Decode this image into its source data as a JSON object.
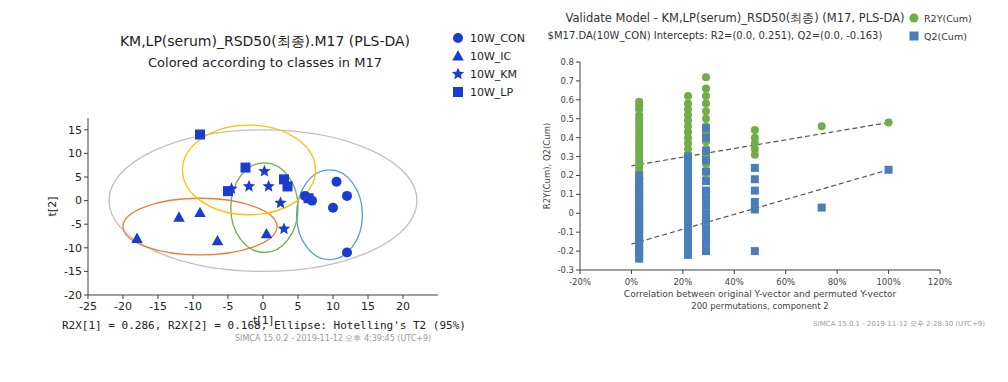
{
  "chart_data": [
    {
      "type": "scatter",
      "title": "KM,LP(serum)_RSD50(최종).M17 (PLS-DA)",
      "subtitle": "Colored according to classes in M17",
      "x_label": "t[1]",
      "y_label": "t[2]",
      "xlim": [
        -25,
        25
      ],
      "ylim": [
        -20,
        17.5
      ],
      "xticks": [
        -25,
        -20,
        -15,
        -10,
        -5,
        0,
        5,
        10,
        15,
        20
      ],
      "yticks": [
        -20,
        -15,
        -10,
        -5,
        0,
        5,
        10,
        15
      ],
      "grid": false,
      "legend": "top-right",
      "series": [
        {
          "name": "10W_CON",
          "color": "#1a3ccf",
          "marker": "circle",
          "x": [
            10.5,
            12,
            10,
            6,
            7,
            12
          ],
          "values": [
            4,
            1,
            -1.5,
            1,
            0,
            -11
          ]
        },
        {
          "name": "10W_IC",
          "color": "#1a3ccf",
          "marker": "triangle",
          "x": [
            -18,
            -12,
            -9,
            -6.5,
            0.5
          ],
          "values": [
            -8,
            -3.5,
            -2.5,
            -8.5,
            -7
          ]
        },
        {
          "name": "10W_KM",
          "color": "#1a3ccf",
          "marker": "star",
          "x": [
            0.2,
            -2,
            0.8,
            2.5,
            3,
            -4.5
          ],
          "values": [
            6.2,
            3,
            3,
            -0.5,
            -6,
            2.5
          ]
        },
        {
          "name": "10W_LP",
          "color": "#1a3ccf",
          "marker": "square",
          "x": [
            -9,
            -2.5,
            -5,
            3,
            3.5,
            6.5
          ],
          "values": [
            14,
            7,
            2,
            4.5,
            3,
            0.5
          ]
        }
      ],
      "ellipses": [
        {
          "color": "#bfbfbf",
          "cx": 0,
          "cy": 0,
          "rx": 22,
          "ry": 15
        },
        {
          "color": "#5b9bd5",
          "cx": 9.5,
          "cy": -3,
          "rx": 4.7,
          "ry": 9.5
        },
        {
          "color": "#ed7d31",
          "cx": -9,
          "cy": -5.5,
          "rx": 11,
          "ry": 6
        },
        {
          "color": "#70ad47",
          "cx": 0.2,
          "cy": -1.5,
          "rx": 4.8,
          "ry": 9.5
        },
        {
          "color": "#ffc000",
          "cx": -2,
          "cy": 6.5,
          "rx": 9.5,
          "ry": 9.5
        }
      ],
      "annotations": [
        "R2X[1] = 0.286, R2X[2] = 0.168, Ellipse: Hotelling's T2 (95%)",
        "SIMCA 15.0.2 - 2019-11-12 오후 4:39:45 (UTC+9)"
      ]
    },
    {
      "type": "scatter",
      "title": "Validate Model - KM,LP(serum)_RSD50(최종) (M17, PLS-DA)",
      "subtitle": "$M17.DA(10W_CON) Intercepts: R2=(0.0, 0.251), Q2=(0.0, -0.163)",
      "x_label": "Correlation between original Y-vector and permuted Y-vector",
      "y_label": "R2Y(Cum), Q2(Cum)",
      "xlim": [
        -20,
        120
      ],
      "ylim": [
        -0.3,
        0.8
      ],
      "xticks": [
        {
          "value": -20,
          "label": "-20%"
        },
        {
          "value": 0,
          "label": "0%"
        },
        {
          "value": 20,
          "label": "20%"
        },
        {
          "value": 40,
          "label": "40%"
        },
        {
          "value": 60,
          "label": "60%"
        },
        {
          "value": 80,
          "label": "80%"
        },
        {
          "value": 100,
          "label": "100%"
        },
        {
          "value": 120,
          "label": "120%"
        }
      ],
      "yticks": [
        -0.3,
        -0.2,
        -0.1,
        0,
        0.1,
        0.2,
        0.3,
        0.4,
        0.5,
        0.6,
        0.7,
        0.8
      ],
      "grid": false,
      "legend": "top-right",
      "series": [
        {
          "name": "R2Y(Cum)",
          "color": "#70ad47",
          "marker": "circle",
          "x": [
            3,
            3,
            3,
            3,
            3,
            3,
            3,
            3,
            3,
            3,
            3,
            3,
            3,
            3,
            3,
            3,
            3,
            3,
            3,
            3,
            3,
            3,
            3,
            3,
            3,
            3,
            3,
            3,
            22,
            22,
            22,
            22,
            22,
            22,
            22,
            22,
            22,
            22,
            22,
            22,
            22,
            22,
            22,
            22,
            22,
            22,
            22,
            22,
            29,
            29,
            29,
            29,
            29,
            29,
            29,
            29,
            29,
            29,
            29,
            29,
            29,
            29,
            48,
            48,
            48,
            48,
            48,
            74,
            100
          ],
          "values": [
            0.59,
            0.57,
            0.55,
            0.52,
            0.5,
            0.48,
            0.46,
            0.44,
            0.42,
            0.4,
            0.38,
            0.36,
            0.34,
            0.32,
            0.3,
            0.28,
            0.26,
            0.24,
            0.22,
            0.2,
            0.18,
            0.16,
            0.14,
            0.12,
            0.1,
            0.08,
            0.06,
            0.04,
            0.62,
            0.58,
            0.55,
            0.52,
            0.49,
            0.46,
            0.43,
            0.4,
            0.37,
            0.34,
            0.31,
            0.28,
            0.25,
            0.22,
            0.19,
            0.16,
            0.13,
            0.1,
            0.07,
            0.05,
            0.72,
            0.66,
            0.62,
            0.58,
            0.54,
            0.5,
            0.46,
            0.42,
            0.38,
            0.34,
            0.3,
            0.26,
            0.22,
            0.18,
            0.44,
            0.4,
            0.37,
            0.34,
            0.31,
            0.46,
            0.48
          ],
          "trend": {
            "x": [
              0,
              100
            ],
            "values": [
              0.251,
              0.48
            ],
            "line_style": "dashed"
          }
        },
        {
          "name": "Q2(Cum)",
          "color": "#4a7ebb",
          "marker": "square",
          "x": [
            3,
            3,
            3,
            3,
            3,
            3,
            3,
            3,
            3,
            3,
            3,
            3,
            3,
            3,
            3,
            3,
            3,
            3,
            3,
            3,
            3,
            3,
            22,
            22,
            22,
            22,
            22,
            22,
            22,
            22,
            22,
            22,
            22,
            22,
            22,
            22,
            22,
            22,
            22,
            22,
            29,
            29,
            29,
            29,
            29,
            29,
            29,
            29,
            29,
            29,
            29,
            29,
            29,
            29,
            29,
            48,
            48,
            48,
            48,
            48,
            48,
            74,
            100
          ],
          "values": [
            0.2,
            0.17,
            0.14,
            0.12,
            0.1,
            0.08,
            0.06,
            0.04,
            0.02,
            0,
            -0.02,
            -0.04,
            -0.06,
            -0.08,
            -0.1,
            -0.12,
            -0.14,
            -0.16,
            -0.18,
            -0.2,
            -0.22,
            -0.24,
            0.3,
            0.26,
            0.22,
            0.19,
            0.16,
            0.13,
            0.1,
            0.07,
            0.04,
            0.01,
            -0.02,
            -0.05,
            -0.08,
            -0.11,
            -0.14,
            -0.17,
            -0.2,
            -0.22,
            0.45,
            0.4,
            0.33,
            0.28,
            0.22,
            0.17,
            0.12,
            0.08,
            0.04,
            0,
            -0.04,
            -0.08,
            -0.12,
            -0.16,
            -0.2,
            0.24,
            0.18,
            0.12,
            0.06,
            0.02,
            -0.2,
            0.03,
            0.23
          ],
          "trend": {
            "x": [
              0,
              100
            ],
            "values": [
              -0.163,
              0.23
            ],
            "line_style": "dashed"
          }
        }
      ],
      "annotations": [
        "200 permutations, component 2",
        "SIMCA 15.0.1 - 2019-11-12 오후 2:28:30 (UTC+9)"
      ]
    }
  ]
}
